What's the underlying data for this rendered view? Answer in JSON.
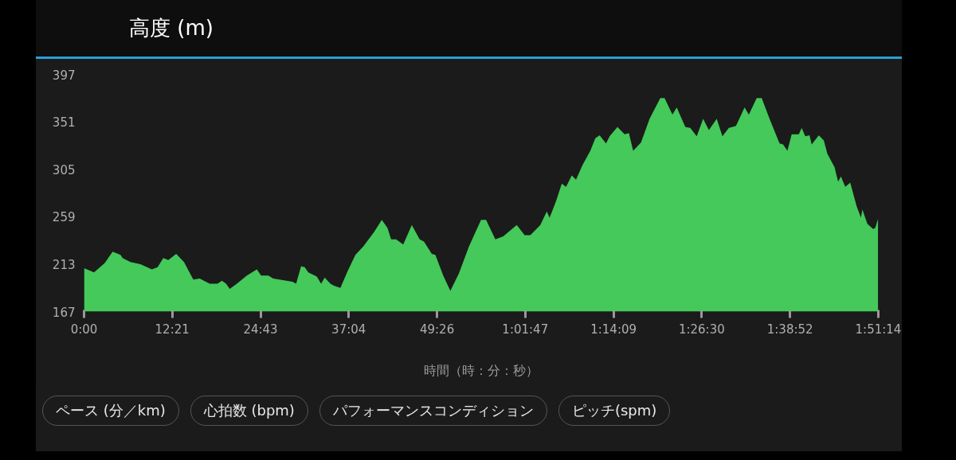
{
  "chart_data": {
    "type": "area",
    "title": "高度 (m)",
    "xlabel": "時間（時：分：秒）",
    "annotations": [
      "ペース (分／km)",
      "心拍数 (bpm)",
      "パフォーマンスコンディション",
      "ピッチ(spm)"
    ],
    "xlim": [
      0,
      111.233
    ],
    "ylim": [
      167,
      397
    ],
    "xticks": [
      {
        "value": 0,
        "label": "0:00"
      },
      {
        "value": 12.35,
        "label": "12:21"
      },
      {
        "value": 24.717,
        "label": "24:43"
      },
      {
        "value": 37.067,
        "label": "37:04"
      },
      {
        "value": 49.433,
        "label": "49:26"
      },
      {
        "value": 61.783,
        "label": "1:01:47"
      },
      {
        "value": 74.15,
        "label": "1:14:09"
      },
      {
        "value": 86.5,
        "label": "1:26:30"
      },
      {
        "value": 98.867,
        "label": "1:38:52"
      },
      {
        "value": 111.233,
        "label": "1:51:14"
      }
    ],
    "yticks": [
      167,
      213,
      259,
      305,
      351,
      397
    ],
    "grid": false,
    "series": [
      {
        "color": "#44c95a",
        "x": [
          0,
          1.4,
          2.9,
          4.0,
          5.1,
          5.4,
          6.5,
          7.9,
          9.5,
          10.3,
          11.1,
          11.8,
          12.9,
          14.0,
          15.3,
          16.2,
          17.6,
          18.7,
          19.3,
          19.9,
          20.4,
          21.4,
          22.8,
          24.2,
          24.8,
          25.8,
          26.5,
          29.2,
          29.7,
          30.4,
          30.9,
          31.4,
          32.6,
          33.2,
          33.7,
          34.5,
          35.0,
          35.9,
          36.9,
          38.0,
          39.1,
          40.6,
          41.7,
          42.5,
          43.0,
          43.7,
          44.7,
          45.9,
          47.0,
          47.6,
          48.7,
          49.2,
          50.3,
          51.3,
          52.5,
          53.9,
          55.6,
          56.3,
          57.6,
          58.7,
          60.6,
          61.7,
          62.5,
          63.9,
          64.8,
          65.2,
          66.1,
          66.9,
          67.5,
          68.3,
          68.9,
          69.8,
          70.9,
          71.6,
          72.2,
          73.1,
          73.6,
          74.7,
          75.7,
          76.3,
          76.9,
          78.0,
          79.2,
          80.7,
          81.3,
          82.4,
          83.0,
          84.2,
          84.9,
          85.8,
          86.7,
          87.5,
          88.6,
          89.4,
          90.3,
          91.3,
          92.5,
          93.1,
          94.2,
          94.9,
          96.0,
          97.4,
          97.9,
          98.5,
          99.1,
          100.1,
          100.5,
          101.0,
          101.6,
          101.9,
          102.9,
          103.6,
          104.1,
          105.1,
          105.6,
          106.0,
          106.6,
          107.3,
          108.2,
          108.8,
          109.0,
          109.7,
          110.5,
          110.8,
          111.2
        ],
        "values": [
          209,
          205,
          214,
          225,
          222,
          219,
          215,
          213,
          208,
          210,
          219,
          217,
          223,
          215,
          198,
          199,
          194,
          194,
          197,
          194,
          189,
          194,
          202,
          208,
          202,
          202,
          199,
          196,
          194,
          211,
          210,
          205,
          201,
          194,
          200,
          194,
          192,
          190,
          206,
          222,
          230,
          244,
          256,
          248,
          237,
          237,
          232,
          251,
          237,
          235,
          223,
          222,
          202,
          187,
          204,
          230,
          256,
          256,
          237,
          240,
          251,
          241,
          241,
          251,
          264,
          258,
          274,
          291,
          288,
          299,
          295,
          309,
          323,
          335,
          338,
          330,
          337,
          346,
          339,
          340,
          323,
          331,
          354,
          374,
          374,
          358,
          365,
          346,
          345,
          337,
          354,
          343,
          354,
          337,
          345,
          347,
          365,
          358,
          374,
          374,
          354,
          330,
          329,
          323,
          339,
          339,
          345,
          337,
          338,
          329,
          338,
          333,
          320,
          307,
          293,
          298,
          288,
          292,
          269,
          258,
          266,
          252,
          247,
          248,
          257
        ]
      }
    ]
  }
}
